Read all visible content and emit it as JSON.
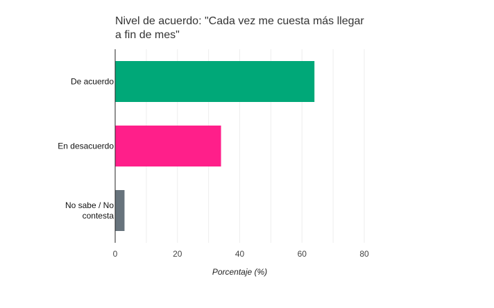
{
  "chart_data": {
    "type": "bar",
    "orientation": "horizontal",
    "title_lines": [
      "Nivel de acuerdo: \"Cada vez me cuesta más llegar",
      "a fin de mes\""
    ],
    "categories": [
      {
        "lines": [
          "De acuerdo"
        ]
      },
      {
        "lines": [
          "En desacuerdo"
        ]
      },
      {
        "lines": [
          "No sabe / No",
          "contesta"
        ]
      }
    ],
    "values": [
      64,
      34,
      3
    ],
    "colors": [
      "#00a878",
      "#ff1f8a",
      "#67737c"
    ],
    "xlabel": "Porcentaje (%)",
    "xlim": [
      0,
      80
    ],
    "xticks": [
      0,
      20,
      40,
      60,
      80
    ],
    "grid": true
  }
}
